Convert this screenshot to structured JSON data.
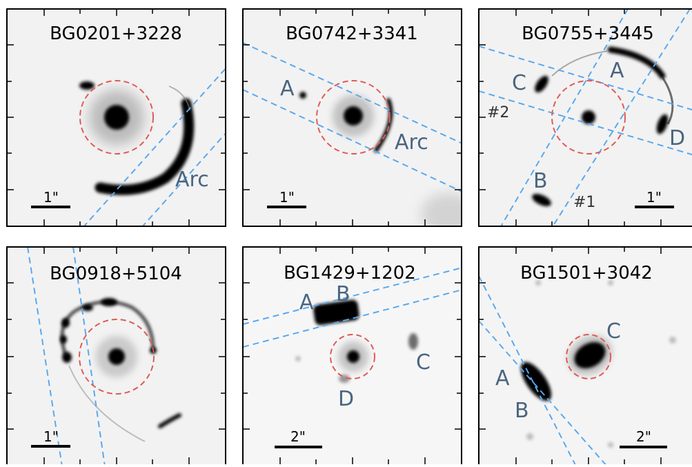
{
  "colors": {
    "background": "#f2f2f2",
    "critical_circle": "#e05a55",
    "lines": "#5aa8ee",
    "labels": "#4a6580",
    "dark": "#000000"
  },
  "panels": [
    {
      "title": "BG0201+3228",
      "scale_label": "1\"",
      "labels": [
        "Arc"
      ],
      "line_labels": []
    },
    {
      "title": "BG0742+3341",
      "scale_label": "1\"",
      "labels": [
        "A",
        "Arc"
      ],
      "line_labels": []
    },
    {
      "title": "BG0755+3445",
      "scale_label": "1\"",
      "labels": [
        "A",
        "B",
        "C",
        "D"
      ],
      "line_labels": [
        "#2",
        "#1"
      ]
    },
    {
      "title": "BG0918+5104",
      "scale_label": "1\"",
      "labels": [],
      "line_labels": []
    },
    {
      "title": "BG1429+1202",
      "scale_label": "2\"",
      "labels": [
        "A",
        "B",
        "C",
        "D"
      ],
      "line_labels": []
    },
    {
      "title": "BG1501+3042",
      "scale_label": "2\"",
      "labels": [
        "A",
        "B",
        "C"
      ],
      "line_labels": []
    }
  ]
}
